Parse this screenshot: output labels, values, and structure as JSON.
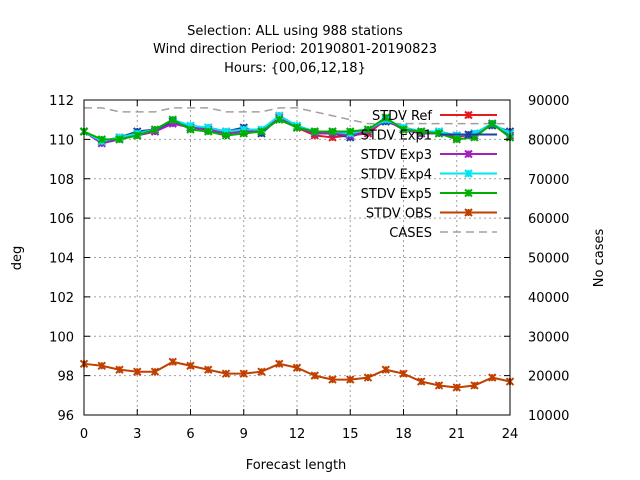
{
  "chart_data": {
    "type": "line",
    "title_lines": [
      "Selection: ALL using   988 stations",
      "Wind direction   Period: 20190801-20190823",
      "Hours: {00,06,12,18}"
    ],
    "xlabel": "Forecast length",
    "ylabel": "deg",
    "y2label": "No cases",
    "xlim": [
      0,
      24
    ],
    "ylim": [
      96,
      112
    ],
    "y2lim": [
      10000,
      90000
    ],
    "xticks": [
      "0",
      "3",
      "6",
      "9",
      "12",
      "15",
      "18",
      "21",
      "24"
    ],
    "yticks": [
      "96",
      "98",
      "100",
      "102",
      "104",
      "106",
      "108",
      "110",
      "112"
    ],
    "y2ticks": [
      "10000",
      "20000",
      "30000",
      "40000",
      "50000",
      "60000",
      "70000",
      "80000",
      "90000"
    ],
    "grid": true,
    "legend_position": "top-right",
    "x": [
      0,
      1,
      2,
      3,
      4,
      5,
      6,
      7,
      8,
      9,
      10,
      11,
      12,
      13,
      14,
      15,
      16,
      17,
      18,
      19,
      20,
      21,
      22,
      23,
      24
    ],
    "series": [
      {
        "name": "STDV Ref",
        "color": "#e41a1c",
        "marker": "x",
        "axis": "y",
        "values": [
          110.4,
          109.9,
          110.1,
          110.2,
          110.4,
          110.9,
          110.6,
          110.5,
          110.3,
          110.4,
          110.4,
          111.2,
          110.6,
          110.2,
          110.1,
          110.2,
          110.3,
          111.0,
          110.5,
          110.3,
          110.3,
          110.1,
          110.3,
          110.8,
          110.1
        ]
      },
      {
        "name": "STDV Exp1",
        "color": "#1f3f9f",
        "marker": "x",
        "axis": "y",
        "values": [
          110.4,
          109.9,
          110.1,
          110.4,
          110.5,
          110.9,
          110.6,
          110.6,
          110.4,
          110.6,
          110.3,
          111.1,
          110.6,
          110.4,
          110.3,
          110.1,
          110.5,
          110.9,
          110.6,
          110.4,
          110.4,
          110.2,
          110.3,
          110.7,
          110.4
        ]
      },
      {
        "name": "STDV Exp3",
        "color": "#a020c0",
        "marker": "x",
        "axis": "y",
        "values": [
          110.4,
          109.8,
          110.0,
          110.2,
          110.4,
          110.8,
          110.6,
          110.5,
          110.3,
          110.4,
          110.4,
          111.1,
          110.6,
          110.3,
          110.3,
          110.2,
          110.4,
          111.0,
          110.5,
          110.3,
          110.3,
          110.2,
          110.2,
          110.8,
          110.2
        ]
      },
      {
        "name": "STDV Exp4",
        "color": "#00e5ee",
        "marker": "x",
        "axis": "y",
        "values": [
          110.4,
          109.9,
          110.1,
          110.3,
          110.5,
          111.0,
          110.7,
          110.6,
          110.4,
          110.5,
          110.5,
          111.2,
          110.7,
          110.4,
          110.4,
          110.3,
          110.5,
          111.0,
          110.6,
          110.4,
          110.4,
          110.2,
          110.3,
          110.8,
          110.3
        ]
      },
      {
        "name": "STDV Exp5",
        "color": "#00b000",
        "marker": "x",
        "axis": "y",
        "values": [
          110.4,
          110.0,
          110.0,
          110.2,
          110.5,
          111.0,
          110.5,
          110.4,
          110.2,
          110.3,
          110.4,
          111.0,
          110.6,
          110.4,
          110.4,
          110.4,
          110.5,
          111.1,
          110.5,
          110.4,
          110.3,
          110.0,
          110.1,
          110.8,
          110.1
        ]
      },
      {
        "name": "STDV OBS",
        "color": "#c04000",
        "marker": "x",
        "axis": "y",
        "values": [
          98.6,
          98.5,
          98.3,
          98.2,
          98.2,
          98.7,
          98.5,
          98.3,
          98.1,
          98.1,
          98.2,
          98.6,
          98.4,
          98.0,
          97.8,
          97.8,
          97.9,
          98.3,
          98.1,
          97.7,
          97.5,
          97.4,
          97.5,
          97.9,
          97.7
        ]
      },
      {
        "name": "CASES",
        "color": "#a0a0a0",
        "marker": "none",
        "axis": "y2",
        "dashed": true,
        "values": [
          88000,
          88000,
          87000,
          87000,
          87000,
          88000,
          88000,
          88000,
          87000,
          87000,
          87000,
          88000,
          88000,
          87000,
          86000,
          85000,
          84000,
          84000,
          84000,
          84000,
          84000,
          84000,
          84000,
          84000,
          84000
        ]
      }
    ]
  }
}
